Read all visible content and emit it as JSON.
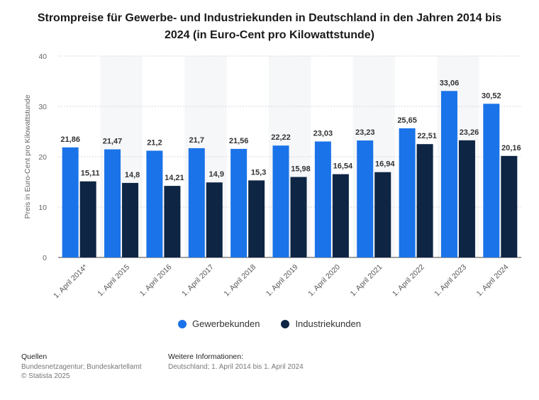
{
  "title": "Strompreise für Gewerbe- und Industriekunden in Deutschland in den Jahren 2014 bis 2024 (in Euro-Cent pro Kilowattstunde)",
  "chart_data": {
    "type": "bar",
    "title": "Strompreise für Gewerbe- und Industriekunden in Deutschland in den Jahren 2014 bis 2024 (in Euro-Cent pro Kilowattstunde)",
    "xlabel": "",
    "ylabel": "Preis in Euro-Cent pro Kilowattstunde",
    "ylim": [
      0,
      40
    ],
    "yticks": [
      "0",
      "10",
      "20",
      "30",
      "40"
    ],
    "grid": true,
    "legend_position": "bottom",
    "categories": [
      "1. April 2014*",
      "1. April 2015",
      "1. April 2016",
      "1. April 2017",
      "1. April 2018",
      "1. April 2019",
      "1. April 2020",
      "1. April 2021",
      "1. April 2022",
      "1. April 2023",
      "1. April 2024"
    ],
    "series": [
      {
        "name": "Gewerbekunden",
        "color": "#1a73e8",
        "values": [
          21.86,
          21.47,
          21.2,
          21.7,
          21.56,
          22.22,
          23.03,
          23.23,
          25.65,
          33.06,
          30.52
        ],
        "labels": [
          "21,86",
          "21,47",
          "21,2",
          "21,7",
          "21,56",
          "22,22",
          "23,03",
          "23,23",
          "25,65",
          "33,06",
          "30,52"
        ]
      },
      {
        "name": "Industriekunden",
        "color": "#0e2544",
        "values": [
          15.11,
          14.8,
          14.21,
          14.9,
          15.3,
          15.98,
          16.54,
          16.94,
          22.51,
          23.26,
          20.16
        ],
        "labels": [
          "15,11",
          "14,8",
          "14,21",
          "14,9",
          "15,3",
          "15,98",
          "16,54",
          "16,94",
          "22,51",
          "23,26",
          "20,16"
        ]
      }
    ]
  },
  "footer": {
    "sources_heading": "Quellen",
    "sources_text": "Bundesnetzagentur; Bundeskartellamt",
    "copyright": "© Statista 2025",
    "info_heading": "Weitere Informationen:",
    "info_text": "Deutschland; 1. April 2014 bis 1. April 2024"
  }
}
